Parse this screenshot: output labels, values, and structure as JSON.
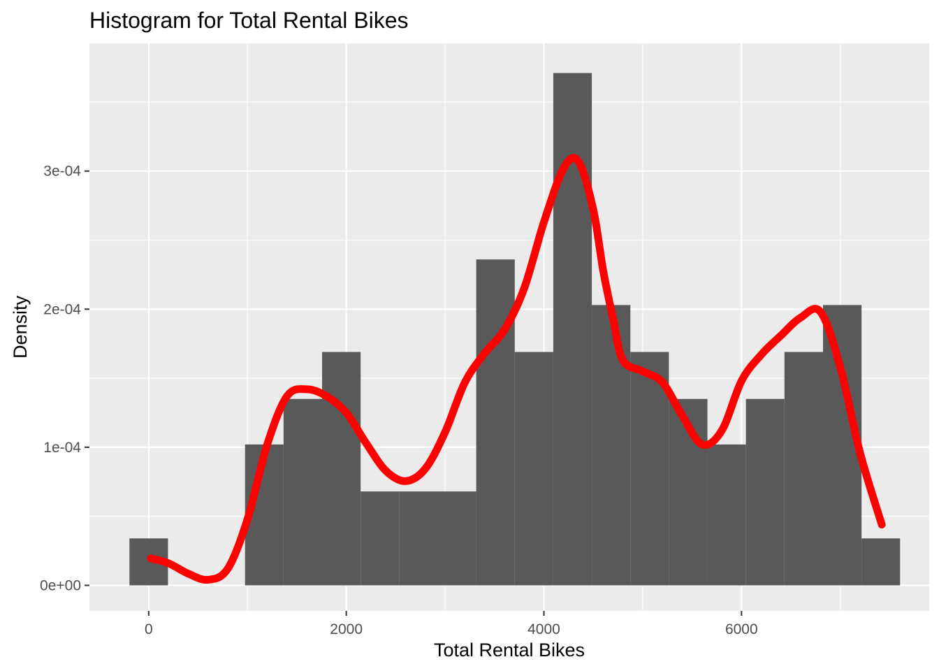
{
  "chart_data": {
    "type": "bar",
    "title": "Histogram for Total Rental Bikes",
    "xlabel": "Total Rental Bikes",
    "ylabel": "Density",
    "xlim": [
      -600,
      7900
    ],
    "ylim": [
      -1.85e-05,
      0.0003925
    ],
    "x_ticks": [
      0,
      2000,
      4000,
      6000
    ],
    "x_tick_labels": [
      "0",
      "2000",
      "4000",
      "6000"
    ],
    "x_minor": [
      1000,
      3000,
      5000,
      7000
    ],
    "y_ticks": [
      0,
      0.0001,
      0.0002,
      0.0003
    ],
    "y_tick_labels": [
      "0e+00",
      "1e-04",
      "2e-04",
      "3e-04"
    ],
    "y_minor": [
      5e-05,
      0.00015,
      0.00025,
      0.00035
    ],
    "grid": true,
    "colors": {
      "panel": "#ebebeb",
      "grid": "#ffffff",
      "bar": "#595959",
      "density": "#ff0000"
    },
    "bins": [
      {
        "x0": -195,
        "x1": 195,
        "density": 3.4e-05
      },
      {
        "x0": 195,
        "x1": 585,
        "density": 0
      },
      {
        "x0": 585,
        "x1": 975,
        "density": 0
      },
      {
        "x0": 975,
        "x1": 1365,
        "density": 0.000102
      },
      {
        "x0": 1365,
        "x1": 1755,
        "density": 0.000135
      },
      {
        "x0": 1755,
        "x1": 2145,
        "density": 0.000169
      },
      {
        "x0": 2145,
        "x1": 2535,
        "density": 6.8e-05
      },
      {
        "x0": 2535,
        "x1": 2925,
        "density": 6.8e-05
      },
      {
        "x0": 2925,
        "x1": 3315,
        "density": 6.8e-05
      },
      {
        "x0": 3315,
        "x1": 3705,
        "density": 0.000236
      },
      {
        "x0": 3705,
        "x1": 4095,
        "density": 0.000169
      },
      {
        "x0": 4095,
        "x1": 4485,
        "density": 0.000371
      },
      {
        "x0": 4485,
        "x1": 4875,
        "density": 0.000203
      },
      {
        "x0": 4875,
        "x1": 5265,
        "density": 0.000169
      },
      {
        "x0": 5265,
        "x1": 5655,
        "density": 0.000135
      },
      {
        "x0": 5655,
        "x1": 6045,
        "density": 0.000102
      },
      {
        "x0": 6045,
        "x1": 6435,
        "density": 0.000135
      },
      {
        "x0": 6435,
        "x1": 6825,
        "density": 0.000169
      },
      {
        "x0": 6825,
        "x1": 7215,
        "density": 0.000203
      },
      {
        "x0": 7215,
        "x1": 7605,
        "density": 3.4e-05
      }
    ],
    "density_curve": {
      "x": [
        22,
        200,
        400,
        600,
        800,
        1000,
        1200,
        1400,
        1600,
        1800,
        2000,
        2200,
        2400,
        2600,
        2800,
        3000,
        3200,
        3400,
        3600,
        3800,
        4000,
        4200,
        4350,
        4500,
        4600,
        4700,
        4800,
        5000,
        5200,
        5400,
        5600,
        5800,
        6000,
        6200,
        6400,
        6600,
        6800,
        7000,
        7200,
        7420
      ],
      "y": [
        1.95e-05,
        1.6e-05,
        8.5e-06,
        4e-06,
        1.2e-05,
        4.8e-05,
        0.000102,
        0.000137,
        0.000142,
        0.000137,
        0.000125,
        0.000103,
        8.3e-05,
        7.55e-05,
        8.45e-05,
        0.000111,
        0.000147,
        0.000168,
        0.000185,
        0.000215,
        0.000263,
        0.000302,
        0.000307,
        0.000272,
        0.000228,
        0.000193,
        0.000163,
        0.000155,
        0.000147,
        0.000123,
        0.000102,
        0.000112,
        0.000148,
        0.000167,
        0.000181,
        0.000194,
        0.000198,
        0.000158,
        9.6e-05,
        4.4e-05
      ]
    }
  }
}
